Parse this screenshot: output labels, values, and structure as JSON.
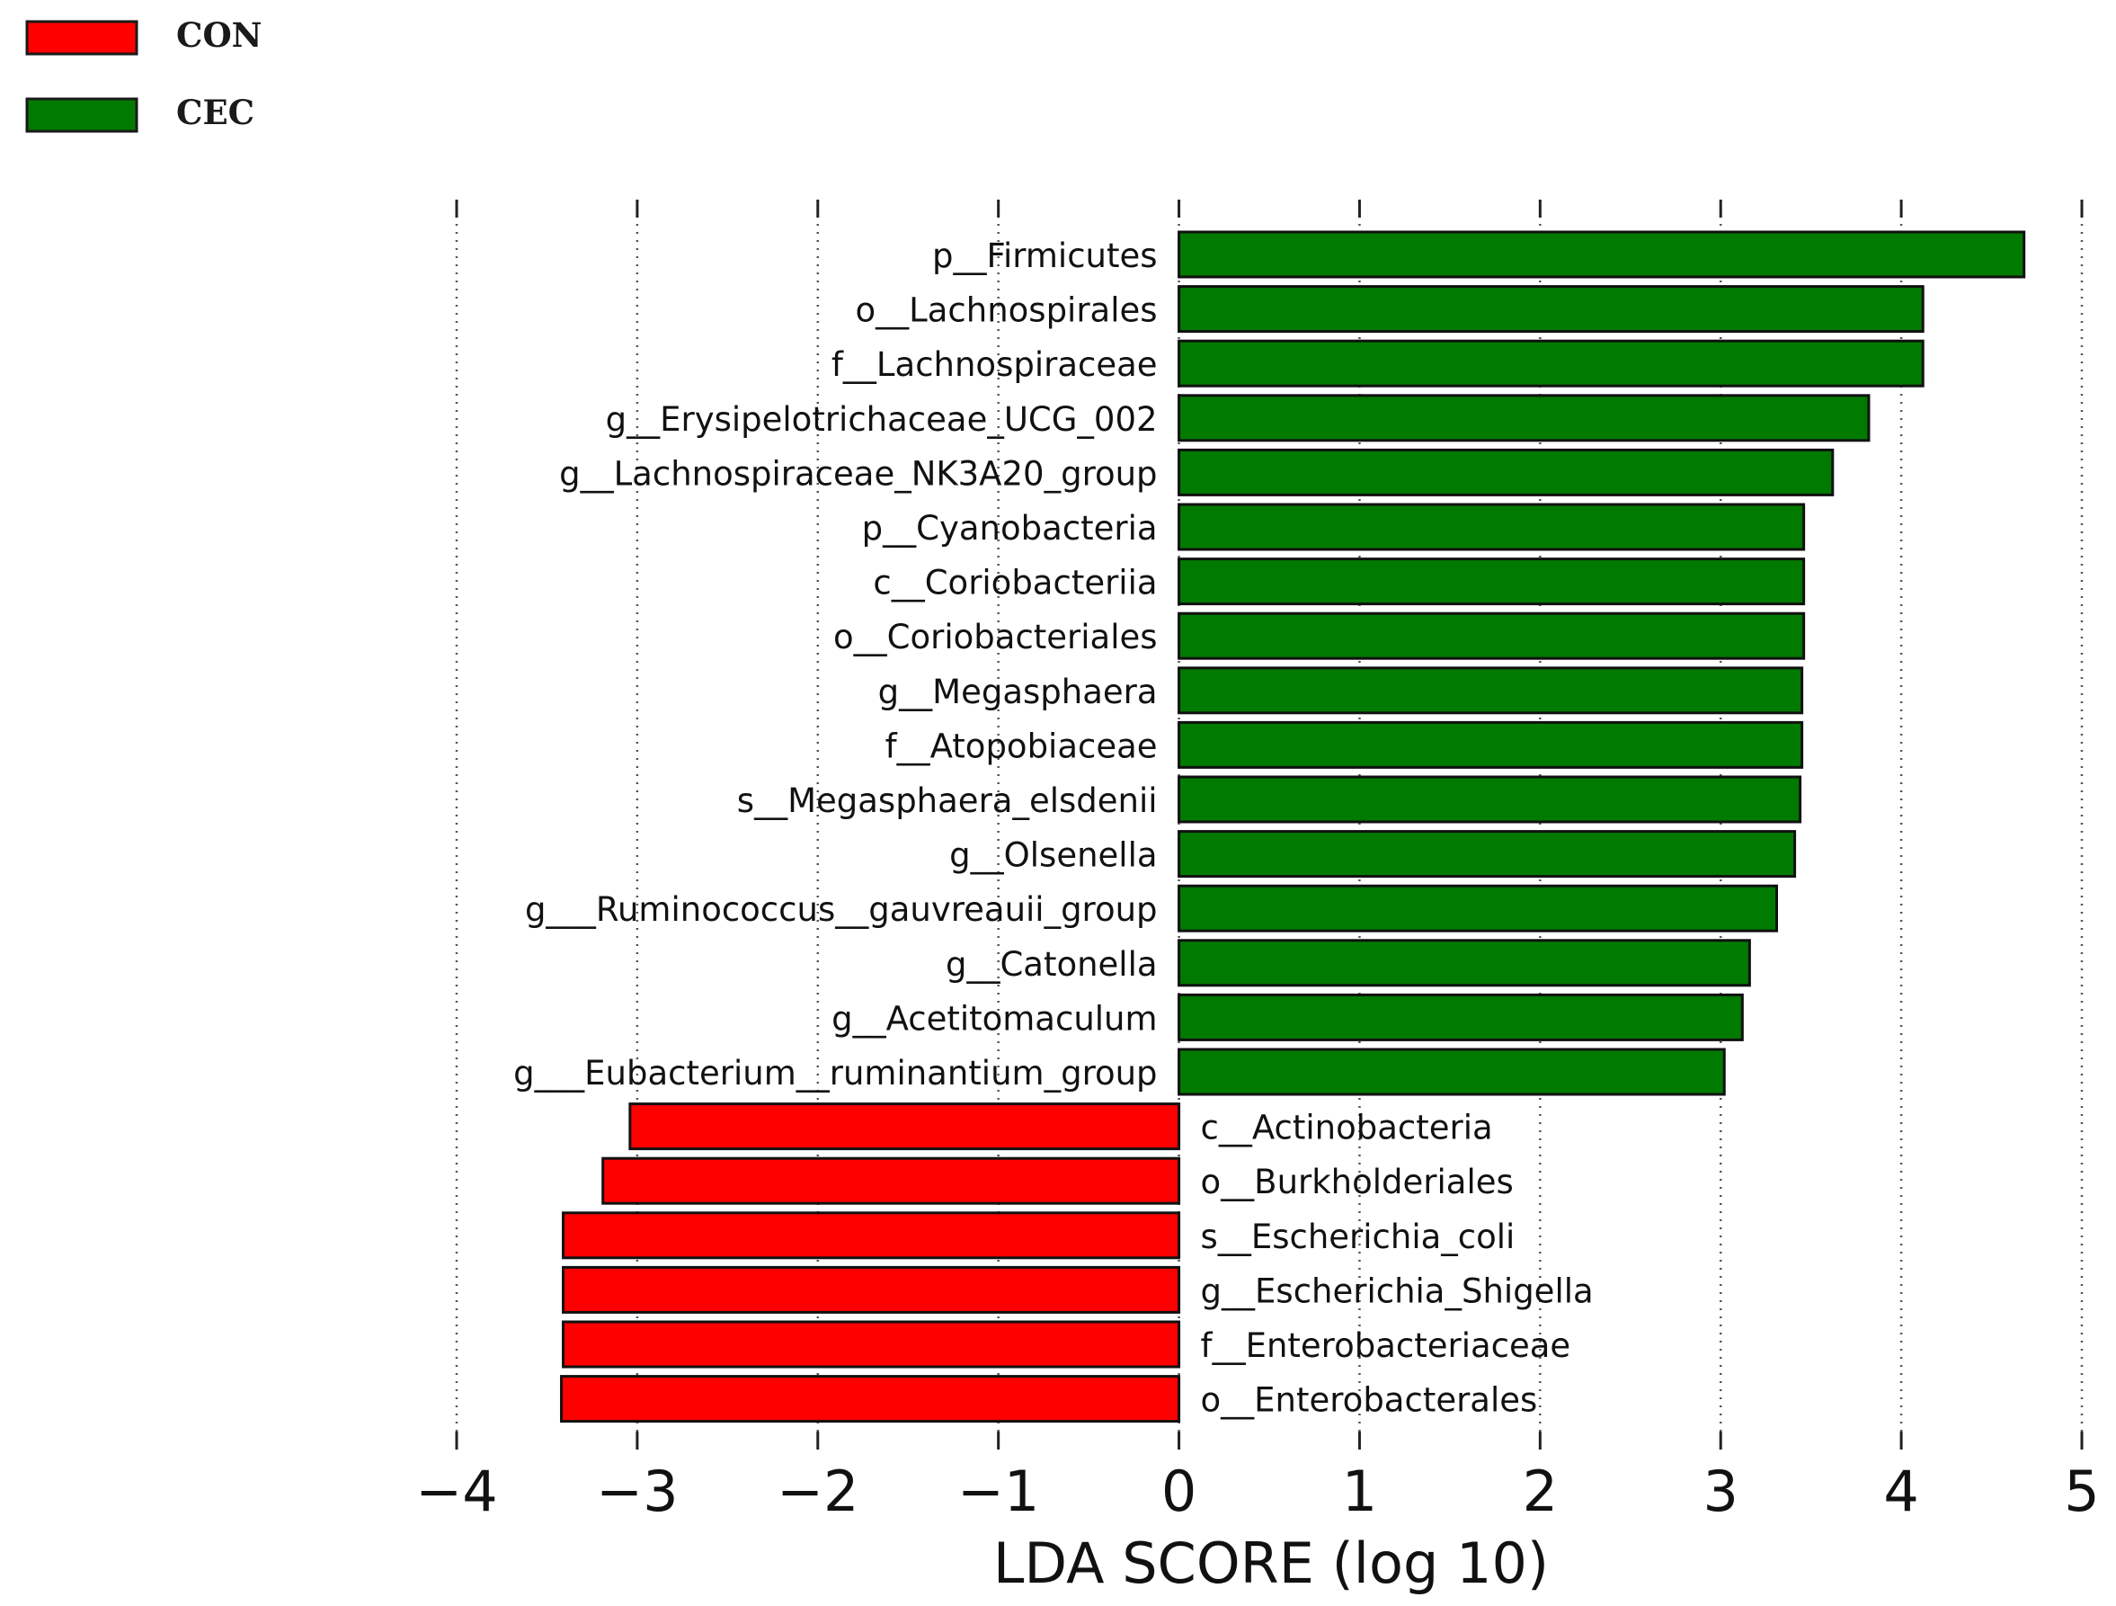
{
  "chart_data": {
    "type": "bar",
    "orientation": "horizontal",
    "title": "",
    "xlabel": "LDA SCORE (log 10)",
    "ylabel": "",
    "xlim": [
      -4,
      5
    ],
    "xticks": [
      -4,
      -3,
      -2,
      -1,
      0,
      1,
      2,
      3,
      4,
      5
    ],
    "xtick_labels": [
      "−4",
      "−3",
      "−2",
      "−1",
      "0",
      "1",
      "2",
      "3",
      "4",
      "5"
    ],
    "grid": "vertical dotted",
    "legend_position": "top-left",
    "legend": [
      {
        "name": "CON",
        "color": "#ff0000"
      },
      {
        "name": "CEC",
        "color": "#007a00"
      }
    ],
    "categories": [
      "p__Firmicutes",
      "o__Lachnospirales",
      "f__Lachnospiraceae",
      "g__Erysipelotrichaceae_UCG_002",
      "g__Lachnospiraceae_NK3A20_group",
      "p__Cyanobacteria",
      "c__Coriobacteriia",
      "o__Coriobacteriales",
      "g__Megasphaera",
      "f__Atopobiaceae",
      "s__Megasphaera_elsdenii",
      "g__Olsenella",
      "g___Ruminococcus__gauvreauii_group",
      "g__Catonella",
      "g__Acetitomaculum",
      "g___Eubacterium__ruminantium_group",
      "c__Actinobacteria",
      "o__Burkholderiales",
      "s__Escherichia_coli",
      "g__Escherichia_Shigella",
      "f__Enterobacteriaceae",
      "o__Enterobacterales"
    ],
    "values": [
      4.68,
      4.12,
      4.12,
      3.82,
      3.62,
      3.46,
      3.46,
      3.46,
      3.45,
      3.45,
      3.44,
      3.41,
      3.31,
      3.16,
      3.12,
      3.02,
      -3.04,
      -3.19,
      -3.41,
      -3.41,
      -3.41,
      -3.42
    ],
    "groups": [
      "CEC",
      "CEC",
      "CEC",
      "CEC",
      "CEC",
      "CEC",
      "CEC",
      "CEC",
      "CEC",
      "CEC",
      "CEC",
      "CEC",
      "CEC",
      "CEC",
      "CEC",
      "CEC",
      "CON",
      "CON",
      "CON",
      "CON",
      "CON",
      "CON"
    ]
  }
}
